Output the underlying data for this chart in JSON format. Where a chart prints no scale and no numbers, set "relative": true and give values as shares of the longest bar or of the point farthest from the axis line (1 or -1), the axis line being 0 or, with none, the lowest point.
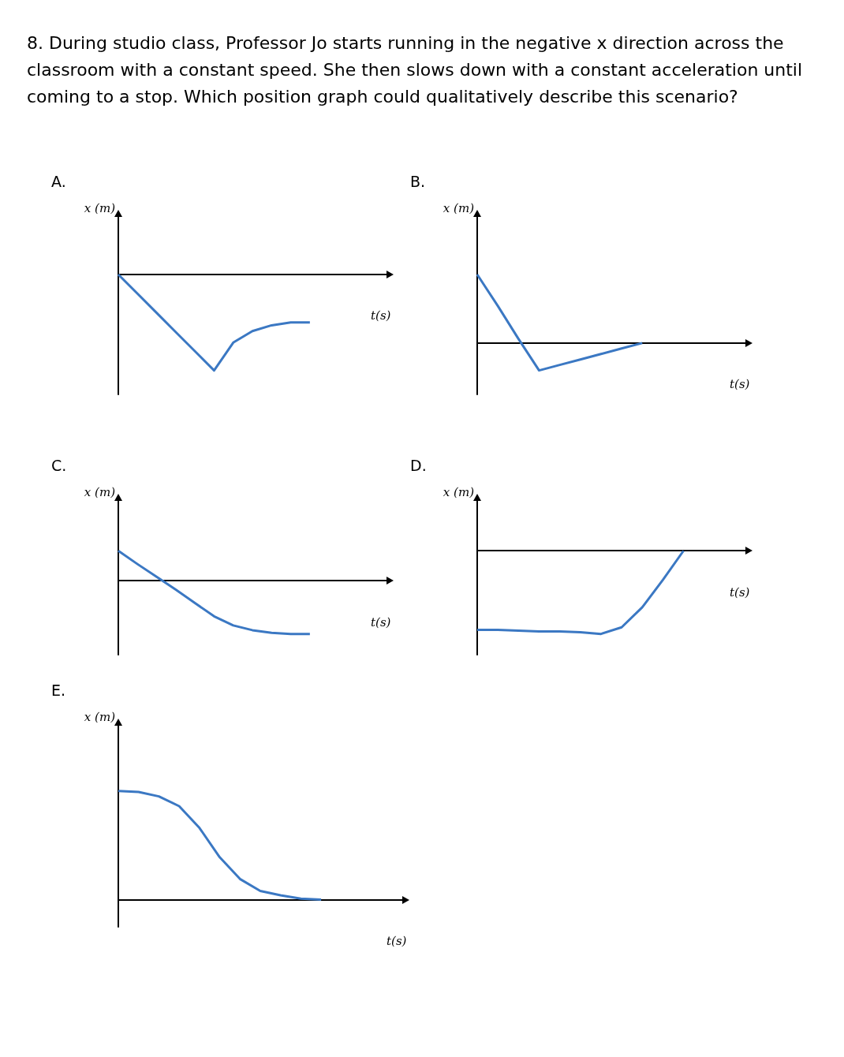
{
  "chart_data": [
    {
      "type": "line",
      "title": "A.",
      "annotations": [
        "8. During studio class, Professor Jo starts running in the negative x direction across the classroom with a constant speed. She then slows down with a constant acceleration until coming to a stop. Which position graph could qualitatively describe this scenario?"
      ],
      "xlabel": "t(s)",
      "ylabel": "x (m)",
      "relative": true,
      "categories": [
        null,
        null,
        null,
        null,
        null,
        null,
        null,
        null,
        null,
        null,
        null,
        null,
        null,
        null,
        null
      ],
      "series": [
        {
          "color": "#3b78c3",
          "values": [
            0,
            -0.2,
            -0.4,
            -0.6,
            -0.8,
            -1,
            -0.71,
            -0.59,
            -0.53,
            -0.5,
            -0.5,
            null,
            null,
            null,
            null
          ]
        }
      ]
    },
    {
      "type": "line",
      "title": "B.",
      "xlabel": "t(s)",
      "ylabel": "x (m)",
      "relative": true,
      "categories": [
        null,
        null,
        null,
        null,
        null,
        null,
        null,
        null,
        null,
        null,
        null,
        null,
        null,
        null
      ],
      "series": [
        {
          "color": "#3b78c3",
          "values": [
            1,
            0.54,
            0.06,
            -0.4,
            -0.32,
            -0.24,
            -0.16,
            -0.08,
            0,
            null,
            null,
            null,
            null,
            null
          ]
        }
      ]
    },
    {
      "type": "line",
      "title": "C.",
      "xlabel": "t(s)",
      "ylabel": "x (m)",
      "relative": true,
      "categories": [
        null,
        null,
        null,
        null,
        null,
        null,
        null,
        null,
        null,
        null,
        null,
        null,
        null,
        null,
        null
      ],
      "series": [
        {
          "color": "#3b78c3",
          "values": [
            0.56,
            0.31,
            0.07,
            -0.17,
            -0.42,
            -0.67,
            -0.84,
            -0.93,
            -0.98,
            -1,
            -1,
            null,
            null,
            null,
            null
          ]
        }
      ]
    },
    {
      "type": "line",
      "title": "D.",
      "xlabel": "t(s)",
      "ylabel": "x (m)",
      "relative": true,
      "categories": [
        null,
        null,
        null,
        null,
        null,
        null,
        null,
        null,
        null,
        null,
        null,
        null,
        null,
        null
      ],
      "series": [
        {
          "color": "#3b78c3",
          "values": [
            -0.95,
            -0.95,
            -0.96,
            -0.97,
            -0.97,
            -0.98,
            -1,
            -0.92,
            -0.68,
            -0.35,
            0,
            null,
            null,
            null
          ]
        }
      ]
    },
    {
      "type": "line",
      "title": "E.",
      "xlabel": "t(s)",
      "ylabel": "x (m)",
      "relative": true,
      "categories": [
        null,
        null,
        null,
        null,
        null,
        null,
        null,
        null,
        null,
        null,
        null,
        null,
        null,
        null,
        null
      ],
      "series": [
        {
          "color": "#3b78c3",
          "values": [
            1,
            0.99,
            0.95,
            0.86,
            0.66,
            0.39,
            0.19,
            0.08,
            0.04,
            0.01,
            0,
            null,
            null,
            null,
            null
          ]
        }
      ]
    }
  ]
}
